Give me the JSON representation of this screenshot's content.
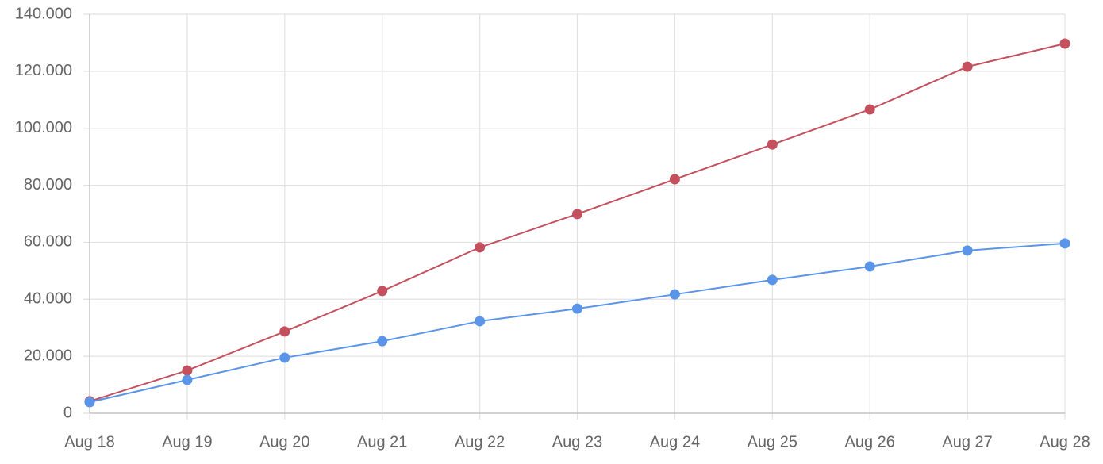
{
  "chart_data": {
    "type": "line",
    "categories": [
      "Aug 18",
      "Aug 19",
      "Aug 20",
      "Aug 21",
      "Aug 22",
      "Aug 23",
      "Aug 24",
      "Aug 25",
      "Aug 26",
      "Aug 27",
      "Aug 28"
    ],
    "series": [
      {
        "color": "#c4505e",
        "values": [
          4200,
          15000,
          28700,
          42900,
          58200,
          69900,
          82100,
          94300,
          106600,
          121600,
          129700
        ]
      },
      {
        "color": "#5b95ea",
        "values": [
          3900,
          11700,
          19500,
          25300,
          32300,
          36700,
          41700,
          46800,
          51500,
          57100,
          59600
        ]
      }
    ],
    "ylim": [
      0,
      140000
    ],
    "yticks": [
      0,
      {
        "value": 20000,
        "label": "20.000"
      },
      {
        "value": 40000,
        "label": "40.000"
      },
      {
        "value": 60000,
        "label": "60.000"
      },
      {
        "value": 80000,
        "label": "80.000"
      },
      {
        "value": 100000,
        "label": "100.000"
      },
      {
        "value": 120000,
        "label": "120.000"
      },
      {
        "value": 140000,
        "label": "140.000"
      }
    ],
    "grid": true
  }
}
